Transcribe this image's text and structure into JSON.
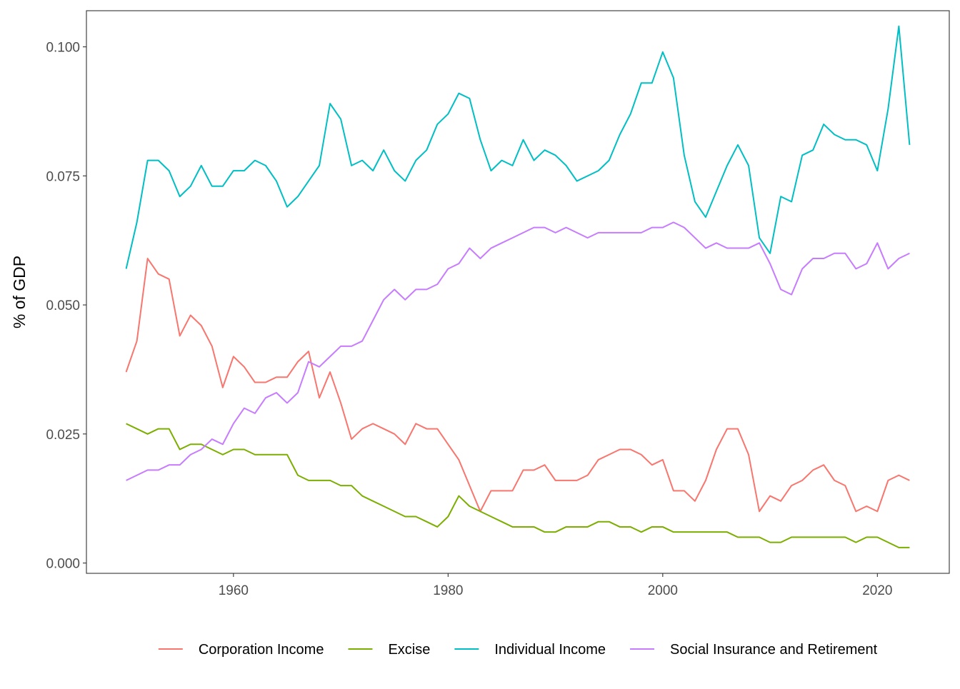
{
  "chart_data": {
    "type": "line",
    "title": "",
    "xlabel": "",
    "ylabel": "% of GDP",
    "xlim": [
      1946.3,
      1926.7
    ],
    "ylim": [
      -0.002,
      0.107
    ],
    "x_ticks": [
      1960,
      1980,
      2000,
      2020
    ],
    "x_tick_labels": [
      "1960",
      "1980",
      "2000",
      "2020"
    ],
    "y_ticks": [
      0.0,
      0.025,
      0.05,
      0.075,
      0.1
    ],
    "y_tick_labels": [
      "0.000",
      "0.025",
      "0.050",
      "0.075",
      "0.100"
    ],
    "grid": false,
    "legend_position": "bottom",
    "x": [
      1950,
      1951,
      1952,
      1953,
      1954,
      1955,
      1956,
      1957,
      1958,
      1959,
      1960,
      1961,
      1962,
      1963,
      1964,
      1965,
      1966,
      1967,
      1968,
      1969,
      1970,
      1971,
      1972,
      1973,
      1974,
      1975,
      1976,
      1977,
      1978,
      1979,
      1980,
      1981,
      1982,
      1983,
      1984,
      1985,
      1986,
      1987,
      1988,
      1989,
      1990,
      1991,
      1992,
      1993,
      1994,
      1995,
      1996,
      1997,
      1998,
      1999,
      2000,
      2001,
      2002,
      2003,
      2004,
      2005,
      2006,
      2007,
      2008,
      2009,
      2010,
      2011,
      2012,
      2013,
      2014,
      2015,
      2016,
      2017,
      2018,
      2019,
      2020,
      2021,
      2022,
      2023
    ],
    "series": [
      {
        "name": "Corporation Income",
        "color": "#F8766D",
        "values": [
          0.037,
          0.043,
          0.059,
          0.056,
          0.055,
          0.044,
          0.048,
          0.046,
          0.042,
          0.034,
          0.04,
          0.038,
          0.035,
          0.035,
          0.036,
          0.036,
          0.039,
          0.041,
          0.032,
          0.037,
          0.031,
          0.024,
          0.026,
          0.027,
          0.026,
          0.025,
          0.023,
          0.027,
          0.026,
          0.026,
          0.023,
          0.02,
          0.015,
          0.01,
          0.014,
          0.014,
          0.014,
          0.018,
          0.018,
          0.019,
          0.016,
          0.016,
          0.016,
          0.017,
          0.02,
          0.021,
          0.022,
          0.022,
          0.021,
          0.019,
          0.02,
          0.014,
          0.014,
          0.012,
          0.016,
          0.022,
          0.026,
          0.026,
          0.021,
          0.01,
          0.013,
          0.012,
          0.015,
          0.016,
          0.018,
          0.019,
          0.016,
          0.015,
          0.01,
          0.011,
          0.01,
          0.016,
          0.017,
          0.016
        ]
      },
      {
        "name": "Excise",
        "color": "#7CAE00",
        "values": [
          0.027,
          0.026,
          0.025,
          0.026,
          0.026,
          0.022,
          0.023,
          0.023,
          0.022,
          0.021,
          0.022,
          0.022,
          0.021,
          0.021,
          0.021,
          0.021,
          0.017,
          0.016,
          0.016,
          0.016,
          0.015,
          0.015,
          0.013,
          0.012,
          0.011,
          0.01,
          0.009,
          0.009,
          0.008,
          0.007,
          0.009,
          0.013,
          0.011,
          0.01,
          0.009,
          0.008,
          0.007,
          0.007,
          0.007,
          0.006,
          0.006,
          0.007,
          0.007,
          0.007,
          0.008,
          0.008,
          0.007,
          0.007,
          0.006,
          0.007,
          0.007,
          0.006,
          0.006,
          0.006,
          0.006,
          0.006,
          0.006,
          0.005,
          0.005,
          0.005,
          0.004,
          0.004,
          0.005,
          0.005,
          0.005,
          0.005,
          0.005,
          0.005,
          0.004,
          0.005,
          0.005,
          0.004,
          0.003,
          0.003
        ]
      },
      {
        "name": "Individual Income",
        "color": "#00BFC4",
        "values": [
          0.057,
          0.066,
          0.078,
          0.078,
          0.076,
          0.071,
          0.073,
          0.077,
          0.073,
          0.073,
          0.076,
          0.076,
          0.078,
          0.077,
          0.074,
          0.069,
          0.071,
          0.074,
          0.077,
          0.089,
          0.086,
          0.077,
          0.078,
          0.076,
          0.08,
          0.076,
          0.074,
          0.078,
          0.08,
          0.085,
          0.087,
          0.091,
          0.09,
          0.082,
          0.076,
          0.078,
          0.077,
          0.082,
          0.078,
          0.08,
          0.079,
          0.077,
          0.074,
          0.075,
          0.076,
          0.078,
          0.083,
          0.087,
          0.093,
          0.093,
          0.099,
          0.094,
          0.079,
          0.07,
          0.067,
          0.072,
          0.077,
          0.081,
          0.077,
          0.063,
          0.06,
          0.071,
          0.07,
          0.079,
          0.08,
          0.085,
          0.083,
          0.082,
          0.082,
          0.081,
          0.076,
          0.088,
          0.104,
          0.081
        ]
      },
      {
        "name": "Social Insurance and Retirement",
        "color": "#C77CFF",
        "values": [
          0.016,
          0.017,
          0.018,
          0.018,
          0.019,
          0.019,
          0.021,
          0.022,
          0.024,
          0.023,
          0.027,
          0.03,
          0.029,
          0.032,
          0.033,
          0.031,
          0.033,
          0.039,
          0.038,
          0.04,
          0.042,
          0.042,
          0.043,
          0.047,
          0.051,
          0.053,
          0.051,
          0.053,
          0.053,
          0.054,
          0.057,
          0.058,
          0.061,
          0.059,
          0.061,
          0.062,
          0.063,
          0.064,
          0.065,
          0.065,
          0.064,
          0.065,
          0.064,
          0.063,
          0.064,
          0.064,
          0.064,
          0.064,
          0.064,
          0.065,
          0.065,
          0.066,
          0.065,
          0.063,
          0.061,
          0.062,
          0.061,
          0.061,
          0.061,
          0.062,
          0.058,
          0.053,
          0.052,
          0.057,
          0.059,
          0.059,
          0.06,
          0.06,
          0.057,
          0.058,
          0.062,
          0.057,
          0.059,
          0.06
        ]
      }
    ]
  }
}
